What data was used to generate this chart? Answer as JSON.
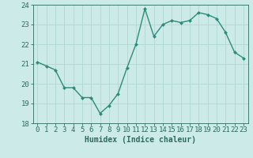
{
  "x": [
    0,
    1,
    2,
    3,
    4,
    5,
    6,
    7,
    8,
    9,
    10,
    11,
    12,
    13,
    14,
    15,
    16,
    17,
    18,
    19,
    20,
    21,
    22,
    23
  ],
  "y": [
    21.1,
    20.9,
    20.7,
    19.8,
    19.8,
    19.3,
    19.3,
    18.5,
    18.9,
    19.5,
    20.8,
    22.0,
    23.8,
    22.4,
    23.0,
    23.2,
    23.1,
    23.2,
    23.6,
    23.5,
    23.3,
    22.6,
    21.6,
    21.3
  ],
  "line_color": "#2d8b7a",
  "marker_color": "#2d8b7a",
  "bg_color": "#cceae7",
  "grid_color": "#b0d8d4",
  "xlabel": "Humidex (Indice chaleur)",
  "ylim": [
    18,
    24
  ],
  "xlim_min": -0.5,
  "xlim_max": 23.5,
  "yticks": [
    18,
    19,
    20,
    21,
    22,
    23,
    24
  ],
  "xticks": [
    0,
    1,
    2,
    3,
    4,
    5,
    6,
    7,
    8,
    9,
    10,
    11,
    12,
    13,
    14,
    15,
    16,
    17,
    18,
    19,
    20,
    21,
    22,
    23
  ],
  "xlabel_fontsize": 7,
  "tick_fontsize": 6.5,
  "tick_color": "#2d6b5e",
  "axis_color": "#2d6b5e",
  "linewidth": 1.0,
  "markersize": 2.0
}
